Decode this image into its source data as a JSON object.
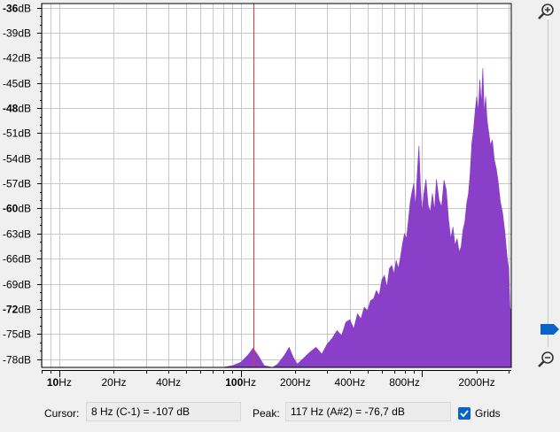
{
  "window": {},
  "status": {
    "cursor_label": "Cursor:",
    "cursor_value": "8 Hz (C-1) = -107 dB",
    "peak_label": "Peak:",
    "peak_value": "117 Hz (A#2) = -76,7 dB",
    "grids_label": "Grids",
    "grids_checked": true
  },
  "colors": {
    "fill": "#8a3fc8",
    "cursor_line": "#d23c3c",
    "grid": "#c8c8c8"
  },
  "icons": {
    "zoom_in": "zoom-in-icon",
    "zoom_out": "zoom-out-icon"
  },
  "zoom_level_fraction": 0.05,
  "chart_data": {
    "type": "area",
    "xscale": "log",
    "xlim": [
      8,
      3100
    ],
    "ylim": [
      -79,
      -35.5
    ],
    "y_ticks": [
      {
        "v": -36,
        "label": "-36dB",
        "bold": true
      },
      {
        "v": -39,
        "label": "-39dB",
        "bold": false
      },
      {
        "v": -42,
        "label": "-42dB",
        "bold": false
      },
      {
        "v": -45,
        "label": "-45dB",
        "bold": false
      },
      {
        "v": -48,
        "label": "-48dB",
        "bold": true
      },
      {
        "v": -51,
        "label": "-51dB",
        "bold": false
      },
      {
        "v": -54,
        "label": "-54dB",
        "bold": false
      },
      {
        "v": -57,
        "label": "-57dB",
        "bold": false
      },
      {
        "v": -60,
        "label": "-60dB",
        "bold": true
      },
      {
        "v": -63,
        "label": "-63dB",
        "bold": false
      },
      {
        "v": -66,
        "label": "-66dB",
        "bold": false
      },
      {
        "v": -69,
        "label": "-69dB",
        "bold": false
      },
      {
        "v": -72,
        "label": "-72dB",
        "bold": true
      },
      {
        "v": -75,
        "label": "-75dB",
        "bold": false
      },
      {
        "v": -78,
        "label": "-78dB",
        "bold": false
      }
    ],
    "x_ticks": [
      {
        "v": 10,
        "prefix": "10",
        "suffix": "Hz",
        "bold_prefix": true
      },
      {
        "v": 20,
        "prefix": "",
        "suffix": "20Hz",
        "bold_prefix": false
      },
      {
        "v": 40,
        "prefix": "",
        "suffix": "40Hz",
        "bold_prefix": false
      },
      {
        "v": 100,
        "prefix": "100",
        "suffix": "Hz",
        "bold_prefix": true
      },
      {
        "v": 200,
        "prefix": "",
        "suffix": "200Hz",
        "bold_prefix": false
      },
      {
        "v": 400,
        "prefix": "",
        "suffix": "400Hz",
        "bold_prefix": false
      },
      {
        "v": 800,
        "prefix": "",
        "suffix": "800Hz",
        "bold_prefix": false
      },
      {
        "v": 2000,
        "prefix": "",
        "suffix": "2000Hz",
        "bold_prefix": false
      }
    ],
    "cursor_hz": 117,
    "spectrum": [
      [
        80,
        -79
      ],
      [
        90,
        -78.8
      ],
      [
        100,
        -78.4
      ],
      [
        110,
        -77.5
      ],
      [
        117,
        -76.7
      ],
      [
        125,
        -77.6
      ],
      [
        135,
        -78.8
      ],
      [
        150,
        -79
      ],
      [
        160,
        -78.6
      ],
      [
        175,
        -77.5
      ],
      [
        185,
        -76.6
      ],
      [
        195,
        -77.8
      ],
      [
        205,
        -78.6
      ],
      [
        220,
        -78
      ],
      [
        240,
        -77.2
      ],
      [
        260,
        -76.6
      ],
      [
        280,
        -77.4
      ],
      [
        300,
        -76.2
      ],
      [
        320,
        -75.5
      ],
      [
        340,
        -74.6
      ],
      [
        360,
        -75.2
      ],
      [
        380,
        -73.6
      ],
      [
        400,
        -73.3
      ],
      [
        420,
        -74.4
      ],
      [
        440,
        -72.6
      ],
      [
        460,
        -73.2
      ],
      [
        480,
        -71.8
      ],
      [
        500,
        -72.2
      ],
      [
        520,
        -71
      ],
      [
        540,
        -70.8
      ],
      [
        560,
        -69.8
      ],
      [
        580,
        -70.4
      ],
      [
        600,
        -68.5
      ],
      [
        620,
        -68
      ],
      [
        640,
        -69.4
      ],
      [
        660,
        -67.2
      ],
      [
        680,
        -66.8
      ],
      [
        700,
        -67.8
      ],
      [
        720,
        -66.2
      ],
      [
        740,
        -67.2
      ],
      [
        760,
        -65.8
      ],
      [
        780,
        -64.2
      ],
      [
        800,
        -63
      ],
      [
        820,
        -63.6
      ],
      [
        840,
        -61.4
      ],
      [
        860,
        -59.2
      ],
      [
        880,
        -58
      ],
      [
        900,
        -57
      ],
      [
        920,
        -59.8
      ],
      [
        940,
        -55.8
      ],
      [
        960,
        -52.5
      ],
      [
        980,
        -57.5
      ],
      [
        1000,
        -60.5
      ],
      [
        1020,
        -58.4
      ],
      [
        1050,
        -56.5
      ],
      [
        1080,
        -59.6
      ],
      [
        1110,
        -60.4
      ],
      [
        1140,
        -58.2
      ],
      [
        1170,
        -60.2
      ],
      [
        1200,
        -56.5
      ],
      [
        1240,
        -59
      ],
      [
        1280,
        -59.8
      ],
      [
        1320,
        -56.6
      ],
      [
        1360,
        -57.8
      ],
      [
        1400,
        -61.4
      ],
      [
        1440,
        -63.6
      ],
      [
        1480,
        -62.2
      ],
      [
        1520,
        -64.4
      ],
      [
        1560,
        -63.6
      ],
      [
        1600,
        -65.2
      ],
      [
        1640,
        -64.6
      ],
      [
        1680,
        -62.6
      ],
      [
        1720,
        -61.6
      ],
      [
        1760,
        -59.4
      ],
      [
        1800,
        -58.2
      ],
      [
        1840,
        -55.8
      ],
      [
        1880,
        -52.2
      ],
      [
        1920,
        -50.6
      ],
      [
        1960,
        -48.4
      ],
      [
        2000,
        -46.6
      ],
      [
        2040,
        -48.4
      ],
      [
        2080,
        -44.6
      ],
      [
        2120,
        -47.6
      ],
      [
        2160,
        -43.2
      ],
      [
        2200,
        -48.6
      ],
      [
        2240,
        -46.6
      ],
      [
        2280,
        -49.4
      ],
      [
        2320,
        -50.6
      ],
      [
        2380,
        -52.4
      ],
      [
        2440,
        -51.8
      ],
      [
        2500,
        -54.2
      ],
      [
        2560,
        -55.2
      ],
      [
        2620,
        -56.6
      ],
      [
        2700,
        -59.2
      ],
      [
        2780,
        -60.6
      ],
      [
        2860,
        -62.8
      ],
      [
        2940,
        -65.8
      ],
      [
        3000,
        -67.2
      ],
      [
        3050,
        -71.8
      ],
      [
        3100,
        -72.6
      ]
    ]
  }
}
